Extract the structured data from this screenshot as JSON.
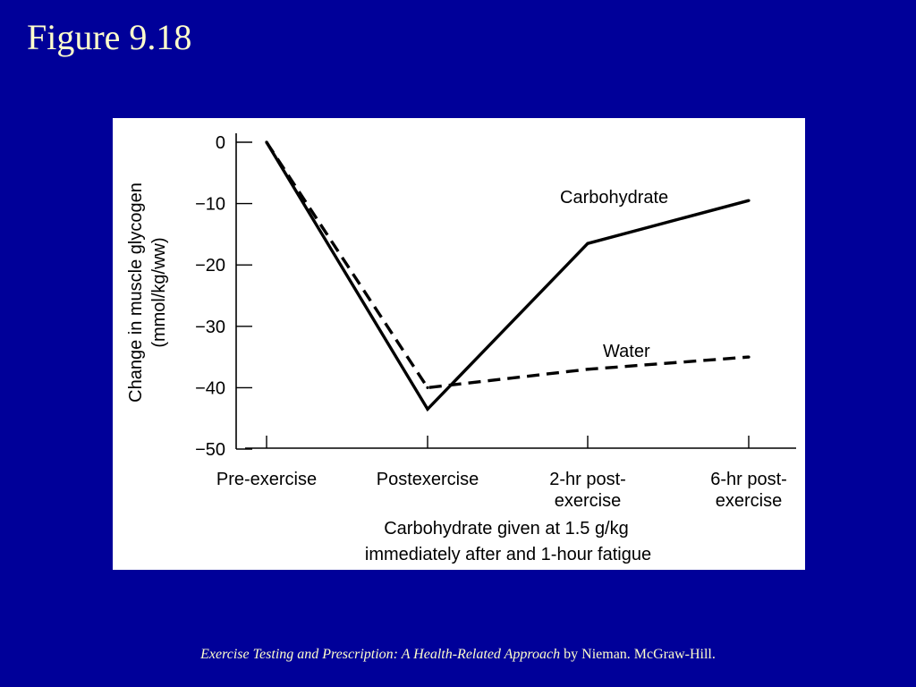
{
  "slide": {
    "title": "Figure 9.18",
    "footer_book": "Exercise Testing and Prescription:  A Health-Related Approach",
    "footer_rest": " by Nieman.  McGraw-Hill."
  },
  "colors": {
    "background": "#000099",
    "text": "#ffffcc",
    "panel": "#ffffff",
    "ink": "#000000"
  },
  "chart_data": {
    "type": "line",
    "ylabel_line1": "Change in muscle glycogen",
    "ylabel_line2": "(mmol/kg/ww)",
    "xlabel_line1": "Carbohydrate given at 1.5 g/kg",
    "xlabel_line2": "immediately after and 1-hour fatigue",
    "ylim": [
      -50,
      0
    ],
    "yticks": [
      {
        "value": 0,
        "label": "0"
      },
      {
        "value": -10,
        "label": "−10"
      },
      {
        "value": -20,
        "label": "−20"
      },
      {
        "value": -30,
        "label": "−30"
      },
      {
        "value": -40,
        "label": "−40"
      },
      {
        "value": -50,
        "label": "−50"
      }
    ],
    "categories": [
      {
        "line1": "Pre-exercise",
        "line2": ""
      },
      {
        "line1": "Postexercise",
        "line2": ""
      },
      {
        "line1": "2-hr post-",
        "line2": "exercise"
      },
      {
        "line1": "6-hr post-",
        "line2": "exercise"
      }
    ],
    "series": [
      {
        "name": "Carbohydrate",
        "style": "solid",
        "values": [
          0,
          -43.5,
          -16.5,
          -9.5
        ]
      },
      {
        "name": "Water",
        "style": "dashed",
        "values": [
          0,
          -40,
          -37,
          -35
        ]
      }
    ],
    "grid": false,
    "legend": "inline labels"
  }
}
